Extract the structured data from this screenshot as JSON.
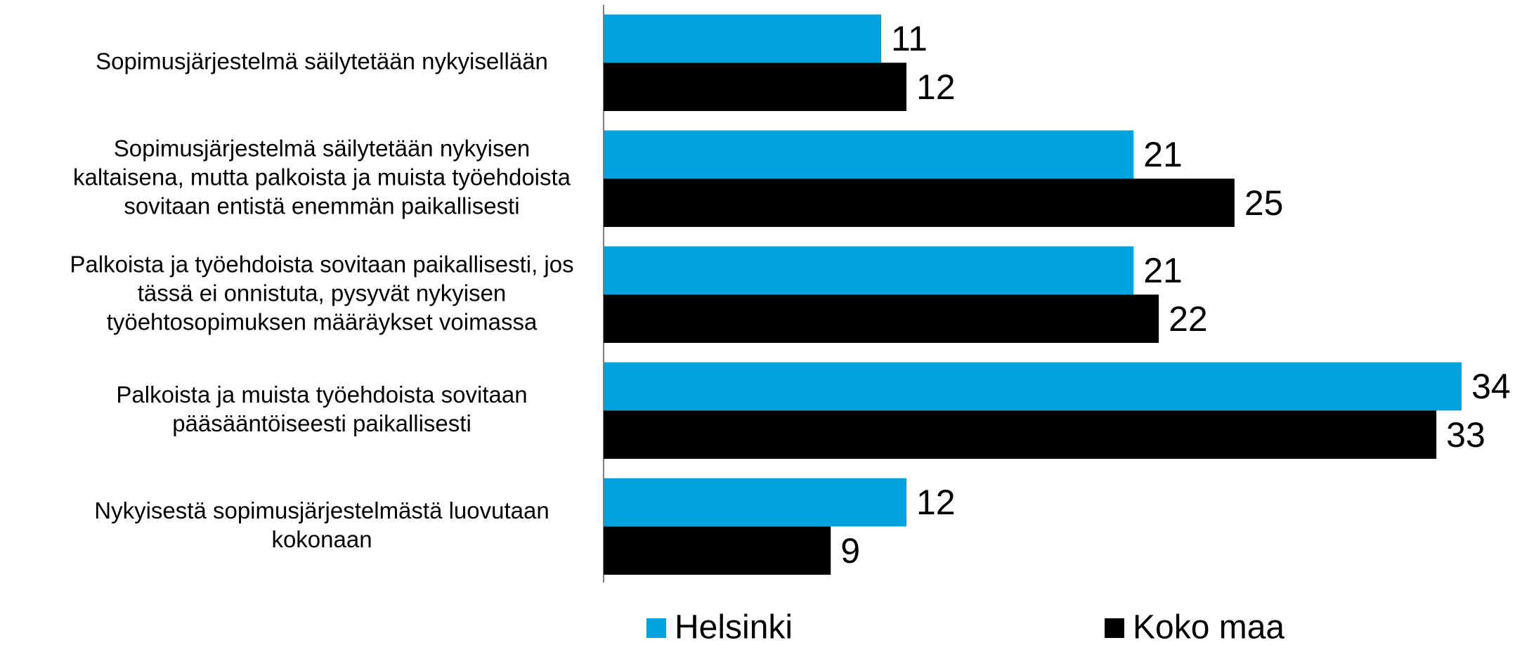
{
  "chart_data": {
    "type": "hbar",
    "categories": [
      "Sopimusjärjestelmä säilytetään nykyisellään",
      "Sopimusjärjestelmä säilytetään nykyisen\nkaltaisena, mutta palkoista ja muista työehdoista\nsovitaan entistä enemmän paikallisesti",
      "Palkoista ja työehdoista sovitaan paikallisesti, jos\ntässä ei onnistuta, pysyvät nykyisen\ntyöehtosopimuksen  määräykset voimassa",
      "Palkoista ja muista työehdoista sovitaan\npääsääntöiseesti paikallisesti",
      "Nykyisestä sopimusjärjestelmästä luovutaan\nkokonaan"
    ],
    "series": [
      {
        "name": "Helsinki",
        "color": "#00a3dd",
        "values": [
          11,
          21,
          21,
          34,
          12
        ]
      },
      {
        "name": "Koko maa",
        "color": "#000000",
        "values": [
          12,
          25,
          22,
          33,
          9
        ]
      }
    ],
    "xlim": [
      0,
      35
    ],
    "legend": "bottom"
  }
}
